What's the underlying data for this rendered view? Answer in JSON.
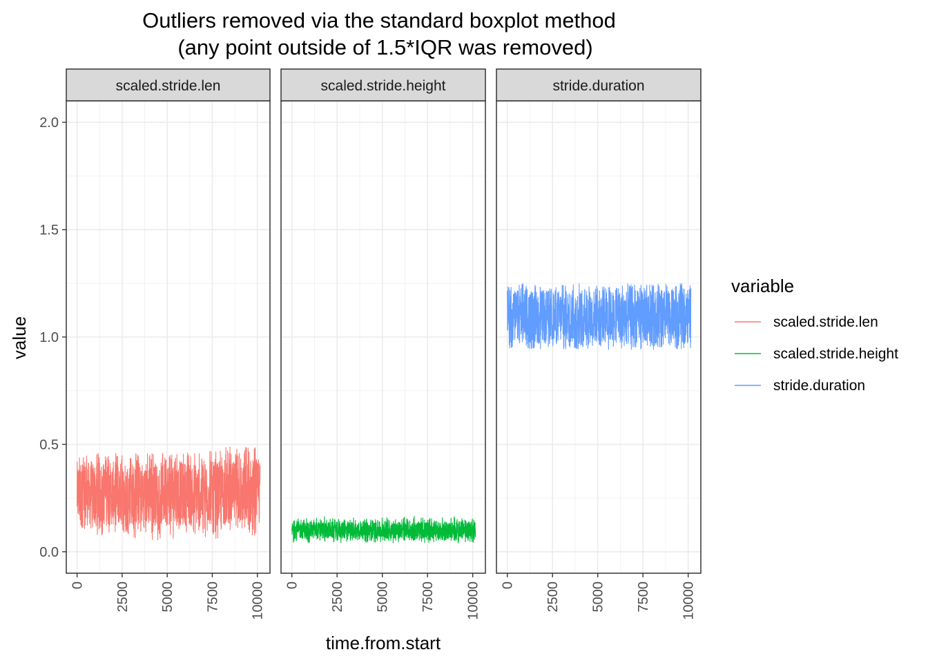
{
  "chart_data": {
    "type": "line",
    "title_line1": "Outliers removed via the standard boxplot method",
    "title_line2": "(any point outside of 1.5*IQR was removed)",
    "xlabel": "time.from.start",
    "ylabel": "value",
    "xlim": [
      -600,
      10700
    ],
    "ylim": [
      -0.1,
      2.1
    ],
    "x_ticks": [
      0,
      2500,
      5000,
      7500,
      10000
    ],
    "x_tick_labels": [
      "0",
      "2500",
      "5000",
      "7500",
      "10000"
    ],
    "y_ticks": [
      0.0,
      0.5,
      1.0,
      1.5,
      2.0
    ],
    "y_tick_labels": [
      "0.0",
      "0.5",
      "1.0",
      "1.5",
      "2.0"
    ],
    "grid": true,
    "legend": {
      "title": "variable",
      "position": "right",
      "entries": [
        "scaled.stride.len",
        "scaled.stride.height",
        "stride.duration"
      ]
    },
    "facets": [
      "scaled.stride.len",
      "scaled.stride.height",
      "stride.duration"
    ],
    "series": [
      {
        "name": "scaled.stride.len",
        "facet": "scaled.stride.len",
        "color": "#F8766D",
        "x_range": [
          0,
          10150
        ],
        "band_low": [
          0.1,
          0.07,
          0.08,
          0.06,
          0.05,
          0.06,
          0.08,
          0.06,
          0.05,
          0.06
        ],
        "band_high": [
          0.46,
          0.47,
          0.46,
          0.46,
          0.47,
          0.46,
          0.47,
          0.48,
          0.49,
          0.49
        ],
        "band_typical_low": 0.12,
        "band_typical_high": 0.42
      },
      {
        "name": "scaled.stride.height",
        "facet": "scaled.stride.height",
        "color": "#00BA38",
        "x_range": [
          0,
          10150
        ],
        "band_low": [
          0.04,
          0.04,
          0.04,
          0.05,
          0.04,
          0.04,
          0.05,
          0.04,
          0.05,
          0.04
        ],
        "band_high": [
          0.16,
          0.17,
          0.16,
          0.16,
          0.16,
          0.16,
          0.17,
          0.16,
          0.17,
          0.16
        ],
        "band_typical_low": 0.06,
        "band_typical_high": 0.14
      },
      {
        "name": "stride.duration",
        "facet": "stride.duration",
        "color": "#619CFF",
        "x_range": [
          0,
          10150
        ],
        "band_low": [
          0.94,
          0.94,
          0.94,
          0.94,
          0.94,
          0.94,
          0.94,
          0.94,
          0.94,
          0.94
        ],
        "band_high": [
          1.25,
          1.25,
          1.25,
          1.25,
          1.25,
          1.25,
          1.25,
          1.25,
          1.25,
          1.25
        ],
        "band_typical_low": 0.97,
        "band_typical_high": 1.22
      }
    ]
  }
}
